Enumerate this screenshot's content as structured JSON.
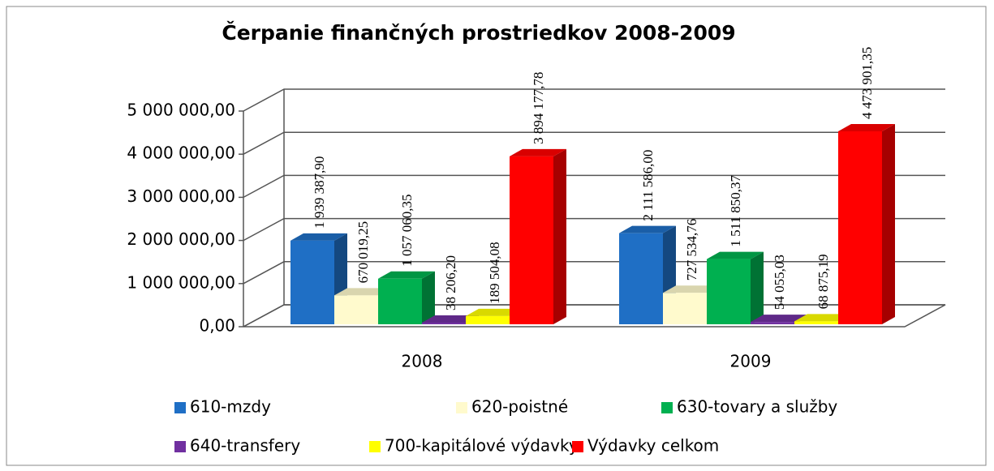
{
  "chart_data": {
    "type": "bar3d",
    "title": "Čerpanie finančných prostriedkov 2008-2009",
    "categories": [
      "2008",
      "2009"
    ],
    "series": [
      {
        "name": "610-mzdy",
        "color": "#1f6fc5",
        "values": [
          1939387.9,
          2111586.0
        ],
        "value_labels": [
          "1 939 387,90",
          "2 111 586,00"
        ]
      },
      {
        "name": "620-poistné",
        "color": "#fffacd",
        "values": [
          670019.25,
          727534.76
        ],
        "value_labels": [
          "670 019,25",
          "727 534,76"
        ]
      },
      {
        "name": "630-tovary a služby",
        "color": "#00b050",
        "values": [
          1057060.35,
          1511850.37
        ],
        "value_labels": [
          "1 057 060,35",
          "1 511 850,37"
        ]
      },
      {
        "name": "640-transfery",
        "color": "#7030a0",
        "values": [
          38206.2,
          54055.03
        ],
        "value_labels": [
          "38 206,20",
          "54 055,03"
        ]
      },
      {
        "name": "700-kapitálové výdavky",
        "color": "#ffff00",
        "values": [
          189504.08,
          68875.19
        ],
        "value_labels": [
          "189 504,08",
          "68 875,19"
        ]
      },
      {
        "name": "Výdavky celkom",
        "color": "#ff0000",
        "values": [
          3894177.78,
          4473901.35
        ],
        "value_labels": [
          "3 894 177,78",
          "4 473 901,35"
        ]
      }
    ],
    "ylim": [
      0,
      5000000
    ],
    "yticks": [
      {
        "value": 0,
        "label": "0,00"
      },
      {
        "value": 1000000,
        "label": "1 000 000,00"
      },
      {
        "value": 2000000,
        "label": "2 000 000,00"
      },
      {
        "value": 3000000,
        "label": "3 000 000,00"
      },
      {
        "value": 4000000,
        "label": "4 000 000,00"
      },
      {
        "value": 5000000,
        "label": "5 000 000,00"
      }
    ],
    "grid": true
  }
}
